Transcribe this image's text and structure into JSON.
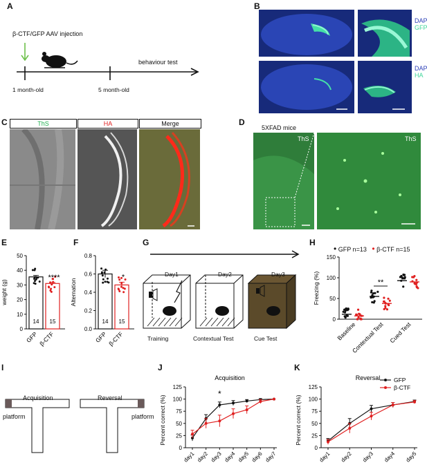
{
  "panels": {
    "A": {
      "letter": "A",
      "injection_label": "β-CTF/GFP AAV injection",
      "timepoint_1": "1 month-old",
      "timepoint_2": "5 month-old",
      "behaviour_label": "behaviour test"
    },
    "B": {
      "letter": "B",
      "row1_labels": [
        "DAPI",
        "GFP"
      ],
      "row2_labels": [
        "DAPI",
        "HA"
      ],
      "colors": {
        "dapi": "#2b3fb8",
        "gfp": "#3ed69a",
        "ha": "#3ed69a"
      }
    },
    "C": {
      "letter": "C",
      "headers": [
        "ThS",
        "HA",
        "Merge"
      ],
      "header_colors": [
        "#20b050",
        "#e02020",
        "#111111"
      ]
    },
    "D": {
      "letter": "D",
      "title": "5XFAD mice",
      "label_left": "ThS",
      "label_right": "ThS"
    },
    "E": {
      "letter": "E"
    },
    "F": {
      "letter": "F"
    },
    "G": {
      "letter": "G",
      "days": [
        "Day1",
        "Day2",
        "Day3"
      ],
      "stages": [
        "Training",
        "Contextual Test",
        "Cue Test"
      ]
    },
    "H": {
      "letter": "H",
      "legend": [
        {
          "marker": "•",
          "label": "GFP n=13",
          "color": "#111111"
        },
        {
          "marker": "•",
          "label": "β-CTF n=15",
          "color": "#e02020"
        }
      ]
    },
    "I": {
      "letter": "I",
      "acquisition_label": "Acquisition",
      "reversal_label": "Reversal",
      "platform_label": "platform"
    },
    "J": {
      "letter": "J"
    },
    "K": {
      "letter": "K"
    }
  },
  "chart_data": [
    {
      "id": "E",
      "type": "bar",
      "ylabel": "weight (g)",
      "ylim": [
        0,
        50
      ],
      "yticks": [
        0,
        10,
        20,
        30,
        40,
        50
      ],
      "categories": [
        "GFP",
        "β-CTF"
      ],
      "values": [
        35.5,
        31
      ],
      "errors": [
        1.0,
        0.7
      ],
      "n_labels": [
        "14",
        "15"
      ],
      "significance": "****",
      "colors": [
        "#111111",
        "#e02020"
      ]
    },
    {
      "id": "F",
      "type": "bar",
      "ylabel": "Alternation",
      "ylim": [
        0,
        0.8
      ],
      "yticks": [
        0.0,
        0.2,
        0.4,
        0.6,
        0.8
      ],
      "categories": [
        "GFP",
        "β-CTF"
      ],
      "values": [
        0.6,
        0.48
      ],
      "errors": [
        0.04,
        0.03
      ],
      "n_labels": [
        "14",
        "15"
      ],
      "significance": "*",
      "colors": [
        "#111111",
        "#e02020"
      ]
    },
    {
      "id": "H",
      "type": "scatter",
      "ylabel": "Freezing (%)",
      "ylim": [
        0,
        150
      ],
      "yticks": [
        0,
        50,
        100,
        150
      ],
      "categories": [
        "Baseline",
        "Contextual Test",
        "Cued Test"
      ],
      "series": [
        {
          "name": "GFP n=13",
          "color": "#111111",
          "means": [
            12,
            55,
            93
          ]
        },
        {
          "name": "β-CTF n=15",
          "color": "#e02020",
          "means": [
            8,
            38,
            90
          ]
        }
      ],
      "significance": [
        {
          "category": "Contextual Test",
          "label": "**"
        }
      ]
    },
    {
      "id": "J",
      "type": "line",
      "title": "Acquisition",
      "ylabel": "Percent correct (%)",
      "ylim": [
        0,
        125
      ],
      "yticks": [
        0,
        25,
        50,
        75,
        100,
        125
      ],
      "x": [
        "day1",
        "day2",
        "day3",
        "day4",
        "day5",
        "day6",
        "day7"
      ],
      "series": [
        {
          "name": "GFP",
          "color": "#111111",
          "values": [
            20,
            60,
            88,
            92,
            96,
            99,
            100
          ],
          "errors": [
            6,
            8,
            6,
            5,
            3,
            2,
            0
          ]
        },
        {
          "name": "β-CTF",
          "color": "#e02020",
          "values": [
            28,
            50,
            55,
            70,
            78,
            95,
            100
          ],
          "errors": [
            8,
            10,
            12,
            10,
            8,
            4,
            0
          ]
        }
      ],
      "annotations": [
        {
          "x": "day3",
          "label": "*"
        }
      ]
    },
    {
      "id": "K",
      "type": "line",
      "title": "Reversal",
      "ylabel": "Percent correct (%)",
      "ylim": [
        0,
        125
      ],
      "yticks": [
        0,
        25,
        50,
        75,
        100,
        125
      ],
      "x": [
        "day1",
        "day2",
        "day3",
        "day4",
        "day5"
      ],
      "series": [
        {
          "name": "GFP",
          "color": "#111111",
          "values": [
            14,
            50,
            80,
            88,
            95
          ],
          "errors": [
            5,
            10,
            7,
            5,
            3
          ]
        },
        {
          "name": "β-CTF",
          "color": "#e02020",
          "values": [
            12,
            40,
            65,
            88,
            94
          ],
          "errors": [
            5,
            10,
            8,
            5,
            3
          ]
        }
      ],
      "legend": [
        "GFP",
        "β-CTF"
      ]
    }
  ]
}
